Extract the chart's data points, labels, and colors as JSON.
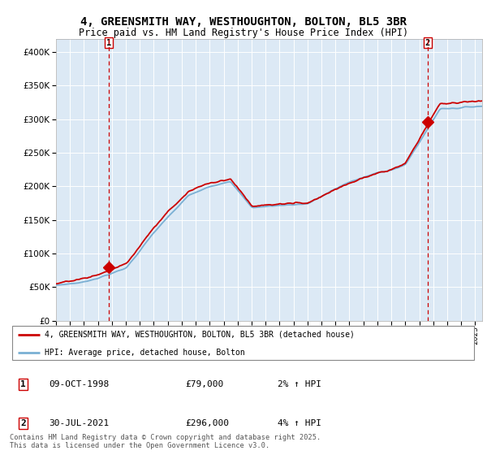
{
  "title_line1": "4, GREENSMITH WAY, WESTHOUGHTON, BOLTON, BL5 3BR",
  "title_line2": "Price paid vs. HM Land Registry's House Price Index (HPI)",
  "bg_color": "#dce9f5",
  "red_color": "#cc0000",
  "blue_color": "#7ab0d4",
  "dashed_color": "#cc0000",
  "legend_label_red": "4, GREENSMITH WAY, WESTHOUGHTON, BOLTON, BL5 3BR (detached house)",
  "legend_label_blue": "HPI: Average price, detached house, Bolton",
  "annotation1_label": "1",
  "annotation1_date": "09-OCT-1998",
  "annotation1_price": "£79,000",
  "annotation1_hpi": "2% ↑ HPI",
  "annotation2_label": "2",
  "annotation2_date": "30-JUL-2021",
  "annotation2_price": "£296,000",
  "annotation2_hpi": "4% ↑ HPI",
  "footer": "Contains HM Land Registry data © Crown copyright and database right 2025.\nThis data is licensed under the Open Government Licence v3.0.",
  "sale1_year": 1998.77,
  "sale1_value": 79000,
  "sale2_year": 2021.58,
  "sale2_value": 296000,
  "xmin": 1995.0,
  "xmax": 2025.5,
  "ymin": 0,
  "ymax": 420000
}
